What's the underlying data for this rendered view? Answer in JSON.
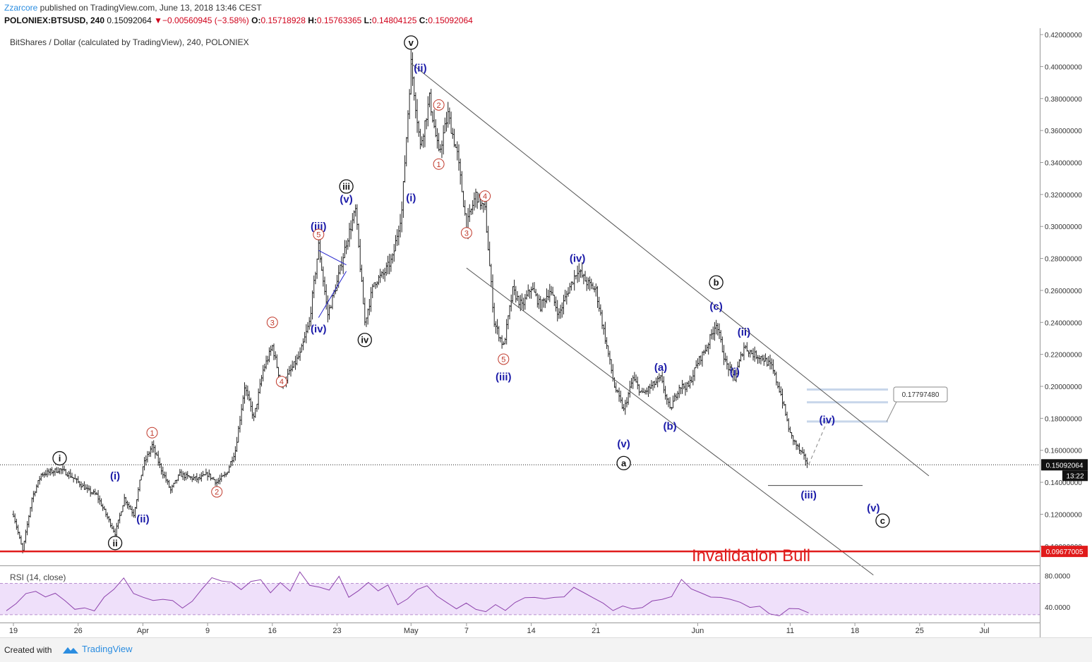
{
  "header": {
    "author": "Zzarcore",
    "published": " published on TradingView.com, June 13, 2018 13:46 CEST",
    "symbol": "POLONIEX:BTSUSD, 240",
    "last": "0.15092064",
    "change_arrow": "▼",
    "change": "−0.00560945 (−3.58%)",
    "o_label": "O:",
    "o": "0.15718928",
    "h_label": "H:",
    "h": "0.15763365",
    "l_label": "L:",
    "l": "0.14804125",
    "c_label": "C:",
    "c": "0.15092064"
  },
  "footer": {
    "created": "Created with",
    "brand": "TradingView"
  },
  "colors": {
    "bars": "#222222",
    "wave_blue": "#1a1aa8",
    "wave_red": "#c0392b",
    "invalidation": "#e01b1b",
    "rsi": "#8e44ad",
    "rsi_band": "#efe0fa",
    "fib_lines": "#c8d6ea",
    "tv_blue": "#2b8de0"
  },
  "chart_data": {
    "type": "candlestick",
    "title": "BitShares / Dollar (calculated by TradingView), 240, POLONIEX",
    "interval": "240",
    "ylim": [
      0.088,
      0.424
    ],
    "y_ticks": [
      "0.42000000",
      "0.40000000",
      "0.38000000",
      "0.36000000",
      "0.34000000",
      "0.32000000",
      "0.30000000",
      "0.28000000",
      "0.26000000",
      "0.24000000",
      "0.22000000",
      "0.20000000",
      "0.18000000",
      "0.16000000",
      "0.14000000",
      "0.12000000",
      "0.10000000"
    ],
    "x_ticks": [
      {
        "label": "19",
        "date": "2018-03-19"
      },
      {
        "label": "26",
        "date": "2018-03-26"
      },
      {
        "label": "Apr",
        "date": "2018-04-02"
      },
      {
        "label": "9",
        "date": "2018-04-09"
      },
      {
        "label": "16",
        "date": "2018-04-16"
      },
      {
        "label": "23",
        "date": "2018-04-23"
      },
      {
        "label": "May",
        "date": "2018-05-01"
      },
      {
        "label": "7",
        "date": "2018-05-07"
      },
      {
        "label": "14",
        "date": "2018-05-14"
      },
      {
        "label": "21",
        "date": "2018-05-21"
      },
      {
        "label": "Jun",
        "date": "2018-06-01"
      },
      {
        "label": "11",
        "date": "2018-06-11"
      },
      {
        "label": "18",
        "date": "2018-06-18"
      },
      {
        "label": "25",
        "date": "2018-06-25"
      },
      {
        "label": "Jul",
        "date": "2018-07-02"
      }
    ],
    "price_path": [
      [
        "2018-03-19",
        0.12
      ],
      [
        "2018-03-20",
        0.097
      ],
      [
        "2018-03-21",
        0.13
      ],
      [
        "2018-03-22",
        0.145
      ],
      [
        "2018-03-24",
        0.148
      ],
      [
        "2018-03-25",
        0.145
      ],
      [
        "2018-03-26",
        0.14
      ],
      [
        "2018-03-27",
        0.135
      ],
      [
        "2018-03-28",
        0.132
      ],
      [
        "2018-03-30",
        0.108
      ],
      [
        "2018-03-31",
        0.13
      ],
      [
        "2018-04-01",
        0.12
      ],
      [
        "2018-04-02",
        0.15
      ],
      [
        "2018-04-03",
        0.163
      ],
      [
        "2018-04-04",
        0.148
      ],
      [
        "2018-04-05",
        0.135
      ],
      [
        "2018-04-06",
        0.145
      ],
      [
        "2018-04-07",
        0.143
      ],
      [
        "2018-04-08",
        0.142
      ],
      [
        "2018-04-09",
        0.145
      ],
      [
        "2018-04-10",
        0.14
      ],
      [
        "2018-04-11",
        0.145
      ],
      [
        "2018-04-12",
        0.16
      ],
      [
        "2018-04-13",
        0.2
      ],
      [
        "2018-04-14",
        0.18
      ],
      [
        "2018-04-15",
        0.21
      ],
      [
        "2018-04-16",
        0.225
      ],
      [
        "2018-04-17",
        0.2
      ],
      [
        "2018-04-18",
        0.21
      ],
      [
        "2018-04-19",
        0.22
      ],
      [
        "2018-04-20",
        0.24
      ],
      [
        "2018-04-21",
        0.288
      ],
      [
        "2018-04-22",
        0.245
      ],
      [
        "2018-04-23",
        0.265
      ],
      [
        "2018-04-24",
        0.29
      ],
      [
        "2018-04-25",
        0.31
      ],
      [
        "2018-04-26",
        0.24
      ],
      [
        "2018-04-27",
        0.265
      ],
      [
        "2018-04-28",
        0.27
      ],
      [
        "2018-04-29",
        0.28
      ],
      [
        "2018-04-30",
        0.31
      ],
      [
        "2018-05-01",
        0.402
      ],
      [
        "2018-05-02",
        0.35
      ],
      [
        "2018-05-03",
        0.38
      ],
      [
        "2018-05-04",
        0.345
      ],
      [
        "2018-05-05",
        0.37
      ],
      [
        "2018-05-06",
        0.345
      ],
      [
        "2018-05-07",
        0.3
      ],
      [
        "2018-05-08",
        0.32
      ],
      [
        "2018-05-09",
        0.31
      ],
      [
        "2018-05-10",
        0.24
      ],
      [
        "2018-05-11",
        0.225
      ],
      [
        "2018-05-12",
        0.26
      ],
      [
        "2018-05-13",
        0.25
      ],
      [
        "2018-05-14",
        0.262
      ],
      [
        "2018-05-15",
        0.25
      ],
      [
        "2018-05-16",
        0.26
      ],
      [
        "2018-05-17",
        0.245
      ],
      [
        "2018-05-18",
        0.26
      ],
      [
        "2018-05-19",
        0.273
      ],
      [
        "2018-05-20",
        0.265
      ],
      [
        "2018-05-21",
        0.26
      ],
      [
        "2018-05-22",
        0.23
      ],
      [
        "2018-05-23",
        0.2
      ],
      [
        "2018-05-24",
        0.185
      ],
      [
        "2018-05-25",
        0.205
      ],
      [
        "2018-05-26",
        0.195
      ],
      [
        "2018-05-27",
        0.2
      ],
      [
        "2018-05-28",
        0.205
      ],
      [
        "2018-05-29",
        0.185
      ],
      [
        "2018-05-30",
        0.2
      ],
      [
        "2018-05-31",
        0.2
      ],
      [
        "2018-06-01",
        0.215
      ],
      [
        "2018-06-02",
        0.225
      ],
      [
        "2018-06-03",
        0.24
      ],
      [
        "2018-06-04",
        0.215
      ],
      [
        "2018-06-05",
        0.205
      ],
      [
        "2018-06-06",
        0.225
      ],
      [
        "2018-06-07",
        0.22
      ],
      [
        "2018-06-08",
        0.218
      ],
      [
        "2018-06-09",
        0.212
      ],
      [
        "2018-06-10",
        0.195
      ],
      [
        "2018-06-11",
        0.17
      ],
      [
        "2018-06-12",
        0.16
      ],
      [
        "2018-06-13",
        0.151
      ]
    ],
    "last_price": {
      "label": "0.15092064",
      "value": 0.15092064,
      "countdown": "13:22"
    },
    "invalidation": {
      "label": "Invalidation Bull",
      "value": 0.09677005,
      "tag": "0.09677005"
    },
    "target_box": {
      "label": "0.17797480",
      "value": 0.1779748
    },
    "fib_levels": [
      0.178,
      0.19,
      0.198
    ],
    "support_level": 0.138,
    "channel_upper": [
      [
        "2018-05-01",
        0.402
      ],
      [
        "2018-06-26",
        0.144
      ]
    ],
    "channel_lower": [
      [
        "2018-05-07",
        0.274
      ],
      [
        "2018-06-20",
        0.082
      ]
    ],
    "wedge": [
      [
        [
          "2018-04-21",
          0.243
        ],
        [
          "2018-04-24",
          0.272
        ]
      ],
      [
        [
          "2018-04-21",
          0.285
        ],
        [
          "2018-04-24",
          0.276
        ]
      ]
    ],
    "projection": [
      [
        "2018-06-13",
        0.151
      ],
      [
        "2018-06-15",
        0.178
      ]
    ],
    "waves": [
      {
        "label": "i",
        "style": "circle",
        "date": "2018-03-24",
        "value": 0.155
      },
      {
        "label": "ii",
        "style": "circle",
        "date": "2018-03-30",
        "value": 0.102
      },
      {
        "label": "iii",
        "style": "circle",
        "date": "2018-04-24",
        "value": 0.325
      },
      {
        "label": "iv",
        "style": "circle",
        "date": "2018-04-26",
        "value": 0.229
      },
      {
        "label": "v",
        "style": "circle",
        "date": "2018-05-01",
        "value": 0.415
      },
      {
        "label": "a",
        "style": "filled",
        "date": "2018-05-24",
        "value": 0.152
      },
      {
        "label": "b",
        "style": "circle",
        "date": "2018-06-03",
        "value": 0.265
      },
      {
        "label": "c",
        "style": "circle",
        "date": "2018-06-21",
        "value": 0.116
      },
      {
        "label": "(i)",
        "style": "blue",
        "date": "2018-03-30",
        "value": 0.144
      },
      {
        "label": "(ii)",
        "style": "blue",
        "date": "2018-04-02",
        "value": 0.117
      },
      {
        "label": "(iii)",
        "style": "blue",
        "date": "2018-04-21",
        "value": 0.3
      },
      {
        "label": "(iv)",
        "style": "blue",
        "date": "2018-04-21",
        "value": 0.236
      },
      {
        "label": "(v)",
        "style": "blue",
        "date": "2018-04-24",
        "value": 0.317
      },
      {
        "label": "(i)",
        "style": "blue",
        "date": "2018-05-01",
        "value": 0.318
      },
      {
        "label": "(ii)",
        "style": "blue",
        "date": "2018-05-02",
        "value": 0.399
      },
      {
        "label": "(iii)",
        "style": "blue",
        "date": "2018-05-11",
        "value": 0.206
      },
      {
        "label": "(iv)",
        "style": "blue",
        "date": "2018-05-19",
        "value": 0.28
      },
      {
        "label": "(v)",
        "style": "blue",
        "date": "2018-05-24",
        "value": 0.164
      },
      {
        "label": "(a)",
        "style": "blue",
        "date": "2018-05-28",
        "value": 0.212
      },
      {
        "label": "(b)",
        "style": "blue",
        "date": "2018-05-29",
        "value": 0.175
      },
      {
        "label": "(c)",
        "style": "blue",
        "date": "2018-06-03",
        "value": 0.25
      },
      {
        "label": "(i)",
        "style": "blue",
        "date": "2018-06-05",
        "value": 0.209
      },
      {
        "label": "(ii)",
        "style": "blue",
        "date": "2018-06-06",
        "value": 0.234
      },
      {
        "label": "(iii)",
        "style": "blue",
        "date": "2018-06-13",
        "value": 0.132
      },
      {
        "label": "(iv)",
        "style": "blue",
        "date": "2018-06-15",
        "value": 0.179
      },
      {
        "label": "(v)",
        "style": "blue",
        "date": "2018-06-20",
        "value": 0.124
      },
      {
        "label": "1",
        "style": "red",
        "date": "2018-04-03",
        "value": 0.171
      },
      {
        "label": "2",
        "style": "red",
        "date": "2018-04-10",
        "value": 0.134
      },
      {
        "label": "3",
        "style": "red",
        "date": "2018-04-16",
        "value": 0.24
      },
      {
        "label": "4",
        "style": "red",
        "date": "2018-04-17",
        "value": 0.203
      },
      {
        "label": "5",
        "style": "red",
        "date": "2018-04-21",
        "value": 0.295
      },
      {
        "label": "1",
        "style": "red",
        "date": "2018-05-04",
        "value": 0.339
      },
      {
        "label": "2",
        "style": "red",
        "date": "2018-05-04",
        "value": 0.376
      },
      {
        "label": "3",
        "style": "red",
        "date": "2018-05-07",
        "value": 0.296
      },
      {
        "label": "4",
        "style": "red",
        "date": "2018-05-09",
        "value": 0.319
      },
      {
        "label": "5",
        "style": "red",
        "date": "2018-05-11",
        "value": 0.217
      }
    ],
    "rsi": {
      "label": "RSI (14, close)",
      "ylim": [
        20,
        92
      ],
      "y_ticks": [
        "80.0000",
        "40.0000"
      ],
      "band": [
        30,
        70
      ],
      "values": [
        35,
        42,
        60,
        58,
        52,
        60,
        45,
        38,
        40,
        32,
        55,
        62,
        75,
        60,
        50,
        48,
        52,
        45,
        40,
        48,
        60,
        80,
        72,
        70,
        65,
        70,
        75,
        60,
        68,
        62,
        85,
        65,
        68,
        60,
        78,
        55,
        58,
        72,
        62,
        65,
        45,
        50,
        60,
        70,
        52,
        45,
        40,
        42,
        38,
        35,
        40,
        38,
        45,
        50,
        55,
        48,
        52,
        55,
        62,
        60,
        52,
        42,
        38,
        40,
        36,
        42,
        45,
        50,
        55,
        72,
        65,
        58,
        50,
        55,
        48,
        45,
        42,
        38,
        32,
        30,
        35,
        40,
        32
      ]
    }
  }
}
